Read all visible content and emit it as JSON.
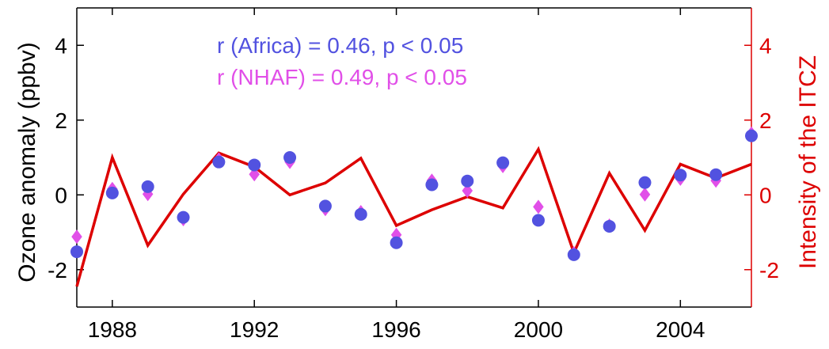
{
  "chart_data": {
    "type": "line",
    "title": "",
    "xlabel": "",
    "ylabel": "Ozone anomaly (ppbv)",
    "y2label": "Intensity of the ITCZ",
    "xlim": [
      1987,
      2006
    ],
    "ylim": [
      -3,
      5
    ],
    "y2lim": [
      -3,
      5
    ],
    "xticks": [
      1988,
      1992,
      1996,
      2000,
      2004
    ],
    "yticks": [
      -2,
      0,
      2,
      4
    ],
    "y2ticks": [
      -2,
      0,
      2,
      4
    ],
    "grid": false,
    "x": [
      1987,
      1988,
      1989,
      1990,
      1991,
      1992,
      1993,
      1994,
      1995,
      1996,
      1997,
      1998,
      1999,
      2000,
      2001,
      2002,
      2003,
      2004,
      2005,
      2006
    ],
    "series": [
      {
        "name": "Africa",
        "marker": "circle",
        "color": "#5252e0",
        "axis": "left",
        "values": [
          -1.52,
          0.05,
          0.22,
          -0.6,
          0.88,
          0.8,
          1.0,
          -0.3,
          -0.52,
          -1.28,
          0.27,
          0.37,
          0.86,
          -0.68,
          -1.6,
          -0.84,
          0.33,
          0.53,
          0.54,
          1.58
        ]
      },
      {
        "name": "NHAF",
        "marker": "diamond",
        "color": "#e14fe8",
        "axis": "left",
        "values": [
          -1.12,
          0.16,
          0.02,
          -0.65,
          0.95,
          0.55,
          0.88,
          -0.38,
          -0.46,
          -1.07,
          0.38,
          0.11,
          0.77,
          -0.32,
          -1.56,
          -0.82,
          0.01,
          0.43,
          0.38,
          1.64
        ]
      },
      {
        "marker": "none",
        "color": "#dd0000",
        "axis": "right",
        "values": [
          -2.45,
          1.0,
          -1.35,
          0.02,
          1.12,
          0.75,
          0.0,
          0.32,
          0.98,
          -0.82,
          -0.4,
          -0.05,
          -0.35,
          1.22,
          -1.55,
          0.58,
          -0.95,
          0.82,
          0.45,
          0.82
        ]
      }
    ],
    "annotations": [
      {
        "text": "r (Africa) = 0.46,  p < 0.05",
        "color": "#5252e0"
      },
      {
        "text": "r (NHAF) = 0.49,  p < 0.05",
        "color": "#e14fe8"
      }
    ]
  }
}
